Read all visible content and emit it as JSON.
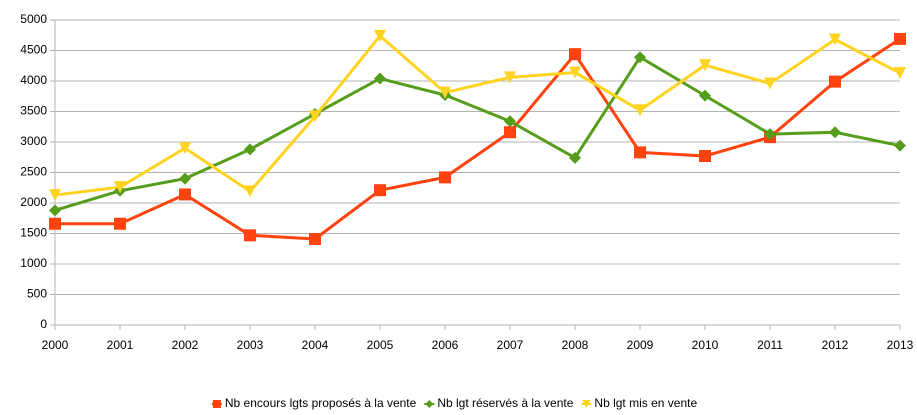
{
  "chart_data": {
    "type": "line",
    "categories": [
      "2000",
      "2001",
      "2002",
      "2003",
      "2004",
      "2005",
      "2006",
      "2007",
      "2008",
      "2009",
      "2010",
      "2011",
      "2012",
      "2013"
    ],
    "series": [
      {
        "name": "Nb encours lgts proposés à la vente",
        "color": "#ff420e",
        "marker": "square",
        "values": [
          1660,
          1660,
          2140,
          1470,
          1410,
          2210,
          2420,
          3160,
          4440,
          2830,
          2770,
          3080,
          3990,
          4690
        ]
      },
      {
        "name": "Nb lgt réservés à la vente",
        "color": "#579d1c",
        "marker": "diamond",
        "values": [
          1880,
          2200,
          2400,
          2880,
          3460,
          4040,
          3770,
          3340,
          2740,
          4390,
          3760,
          3130,
          3160,
          2940
        ]
      },
      {
        "name": "Nb lgt mis en vente",
        "color": "#ffd320",
        "marker": "triangle-down",
        "values": [
          2130,
          2260,
          2900,
          2190,
          3420,
          4740,
          3810,
          4060,
          4140,
          3520,
          4260,
          3960,
          4680,
          4130
        ]
      }
    ],
    "ylim": [
      0,
      5000
    ],
    "yticks": [
      0,
      500,
      1000,
      1500,
      2000,
      2500,
      3000,
      3500,
      4000,
      4500,
      5000
    ],
    "grid": true,
    "legend": "bottom"
  }
}
